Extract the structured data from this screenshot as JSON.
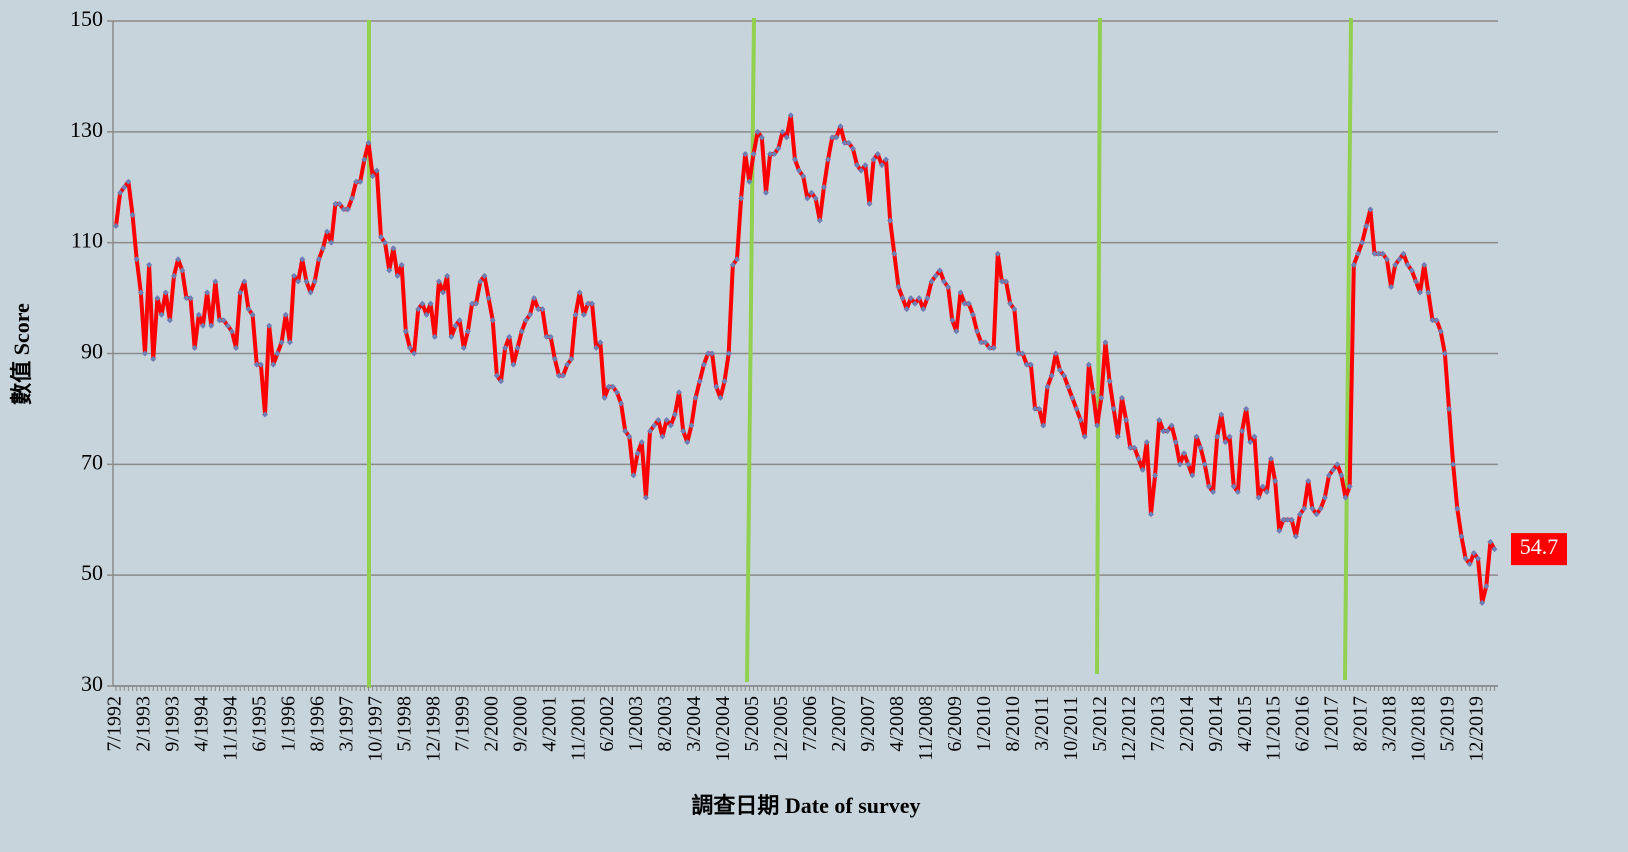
{
  "chart_data": {
    "type": "line",
    "y_label": "數值 Score",
    "x_label": "調查日期 Date of survey",
    "categories": [
      "7/1992",
      null,
      null,
      null,
      null,
      null,
      null,
      "2/1993",
      null,
      null,
      null,
      null,
      null,
      null,
      "9/1993",
      null,
      null,
      null,
      null,
      null,
      null,
      "4/1994",
      null,
      null,
      null,
      null,
      null,
      null,
      "11/1994",
      null,
      null,
      null,
      null,
      null,
      null,
      "6/1995",
      null,
      null,
      null,
      null,
      null,
      null,
      "1/1996",
      null,
      null,
      null,
      null,
      null,
      null,
      "8/1996",
      null,
      null,
      null,
      null,
      null,
      null,
      "3/1997",
      null,
      null,
      null,
      null,
      null,
      null,
      "10/1997",
      null,
      null,
      null,
      null,
      null,
      null,
      "5/1998",
      null,
      null,
      null,
      null,
      null,
      null,
      "12/1998",
      null,
      null,
      null,
      null,
      null,
      null,
      "7/1999",
      null,
      null,
      null,
      null,
      null,
      null,
      "2/2000",
      null,
      null,
      null,
      null,
      null,
      null,
      "9/2000",
      null,
      null,
      null,
      null,
      null,
      null,
      "4/2001",
      null,
      null,
      null,
      null,
      null,
      null,
      "11/2001",
      null,
      null,
      null,
      null,
      null,
      null,
      "6/2002",
      null,
      null,
      null,
      null,
      null,
      null,
      "1/2003",
      null,
      null,
      null,
      null,
      null,
      null,
      "8/2003",
      null,
      null,
      null,
      null,
      null,
      null,
      "3/2004",
      null,
      null,
      null,
      null,
      null,
      null,
      "10/2004",
      null,
      null,
      null,
      null,
      null,
      null,
      "5/2005",
      null,
      null,
      null,
      null,
      null,
      null,
      "12/2005",
      null,
      null,
      null,
      null,
      null,
      null,
      "7/2006",
      null,
      null,
      null,
      null,
      null,
      null,
      "2/2007",
      null,
      null,
      null,
      null,
      null,
      null,
      "9/2007",
      null,
      null,
      null,
      null,
      null,
      null,
      "4/2008",
      null,
      null,
      null,
      null,
      null,
      null,
      "11/2008",
      null,
      null,
      null,
      null,
      null,
      null,
      "6/2009",
      null,
      null,
      null,
      null,
      null,
      null,
      "1/2010",
      null,
      null,
      null,
      null,
      null,
      null,
      "8/2010",
      null,
      null,
      null,
      null,
      null,
      null,
      "3/2011",
      null,
      null,
      null,
      null,
      null,
      null,
      "10/2011",
      null,
      null,
      null,
      null,
      null,
      null,
      "5/2012",
      null,
      null,
      null,
      null,
      null,
      null,
      "12/2012",
      null,
      null,
      null,
      null,
      null,
      null,
      "7/2013",
      null,
      null,
      null,
      null,
      null,
      null,
      "2/2014",
      null,
      null,
      null,
      null,
      null,
      null,
      "9/2014",
      null,
      null,
      null,
      null,
      null,
      null,
      "4/2015",
      null,
      null,
      null,
      null,
      null,
      null,
      "11/2015",
      null,
      null,
      null,
      null,
      null,
      null,
      "6/2016",
      null,
      null,
      null,
      null,
      null,
      null,
      "1/2017",
      null,
      null,
      null,
      null,
      null,
      null,
      "8/2017",
      null,
      null,
      null,
      null,
      null,
      null,
      "3/2018",
      null,
      null,
      null,
      null,
      null,
      null,
      "10/2018",
      null,
      null,
      null,
      null,
      null,
      null,
      "5/2019",
      null,
      null,
      null,
      null,
      null,
      null,
      "12/2019",
      null,
      null,
      null,
      null
    ],
    "series": [
      {
        "color": "#ff0000",
        "marker_color": "#6d7fb5",
        "values": [
          113,
          119,
          120,
          121,
          115,
          107,
          101,
          90,
          106,
          89,
          100,
          97,
          101,
          96,
          104,
          107,
          105,
          100,
          100,
          91,
          97,
          95,
          101,
          95,
          103,
          96,
          96,
          95,
          94,
          91,
          101,
          103,
          98,
          97,
          88,
          88,
          79,
          95,
          88,
          90,
          92,
          97,
          92,
          104,
          103,
          107,
          103,
          101,
          103,
          107,
          109,
          112,
          110,
          117,
          117,
          116,
          116,
          118,
          121,
          121,
          125,
          128,
          122,
          123,
          111,
          110,
          105,
          109,
          104,
          106,
          94,
          91,
          90,
          98,
          99,
          97,
          99,
          93,
          103,
          101,
          104,
          93,
          95,
          96,
          91,
          94,
          99,
          99,
          103,
          104,
          100,
          96,
          86,
          85,
          91,
          93,
          88,
          91,
          94,
          96,
          97,
          100,
          98,
          98,
          93,
          93,
          89,
          86,
          86,
          88,
          89,
          97,
          101,
          97,
          99,
          99,
          91,
          92,
          82,
          84,
          84,
          83,
          81,
          76,
          75,
          68,
          72,
          74,
          64,
          76,
          77,
          78,
          75,
          78,
          77,
          79,
          83,
          76,
          74,
          77,
          82,
          85,
          88,
          90,
          90,
          84,
          82,
          85,
          90,
          106,
          107,
          118,
          126,
          121,
          126,
          130,
          129,
          119,
          126,
          126,
          127,
          130,
          129,
          133,
          125,
          123,
          122,
          118,
          119,
          118,
          114,
          120,
          125,
          129,
          129,
          131,
          128,
          128,
          127,
          124,
          123,
          124,
          117,
          125,
          126,
          124,
          125,
          114,
          108,
          102,
          100,
          98,
          100,
          99,
          100,
          98,
          100,
          103,
          104,
          105,
          103,
          102,
          96,
          94,
          101,
          99,
          99,
          97,
          94,
          92,
          92,
          91,
          91,
          108,
          103,
          103,
          99,
          98,
          90,
          90,
          88,
          88,
          80,
          80,
          77,
          84,
          86,
          90,
          87,
          86,
          84,
          82,
          80,
          78,
          75,
          88,
          83,
          77,
          82,
          92,
          85,
          80,
          75,
          82,
          78,
          73,
          73,
          71,
          69,
          74,
          61,
          68,
          78,
          76,
          76,
          77,
          74,
          70,
          72,
          70,
          68,
          75,
          73,
          70,
          66,
          65,
          75,
          79,
          74,
          75,
          66,
          65,
          76,
          80,
          74,
          75,
          64,
          66,
          65,
          71,
          67,
          58,
          60,
          60,
          60,
          57,
          61,
          62,
          67,
          62,
          61,
          62,
          64,
          68,
          69,
          70,
          68,
          64,
          66,
          106,
          108,
          110,
          113,
          116,
          108,
          108,
          108,
          107,
          102,
          106,
          107,
          108,
          106,
          105,
          103,
          101,
          106,
          101,
          96,
          96,
          94,
          90,
          80,
          70,
          62,
          57,
          53,
          52,
          54,
          53,
          45,
          48,
          56,
          54.7
        ]
      }
    ],
    "ylim": [
      30,
      150
    ],
    "yticks": [
      30,
      50,
      70,
      90,
      110,
      130,
      150
    ],
    "grid": true
  }
}
